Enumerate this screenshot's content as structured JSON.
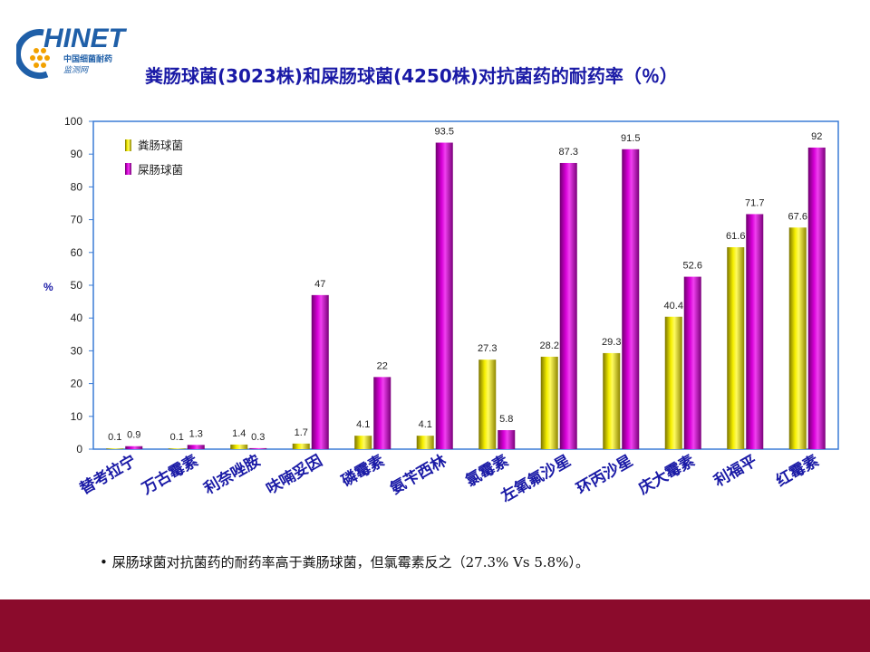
{
  "logo": {
    "word": "HINET",
    "line1": "中国细菌耐药",
    "line2": "监测网"
  },
  "slide_title": "粪肠球菌(3023株)和屎肠球菌(4250株)对抗菌药的耐药率（％）",
  "note": {
    "bullet": "•",
    "text": "屎肠球菌对抗菌药的耐药率高于粪肠球菌，但氯霉素反之（27.3% Vs 5.8%）。"
  },
  "colors": {
    "accent_title": "#1a1aa6",
    "footer": "#8b0b2c",
    "series_fecalis": "#e8e000",
    "series_faecium": "#cc00cc"
  },
  "chart_data": {
    "type": "bar",
    "title": "",
    "ylabel": "%",
    "xlabel": "",
    "ylim": [
      0,
      100
    ],
    "yticks": [
      "0",
      "10",
      "20",
      "30",
      "40",
      "50",
      "60",
      "70",
      "80",
      "90",
      "100"
    ],
    "grid": false,
    "legend_position": "top-left",
    "categories": [
      "替考拉宁",
      "万古霉素",
      "利奈唑胺",
      "呋喃妥因",
      "磷霉素",
      "氨苄西林",
      "氯霉素",
      "左氧氟沙星",
      "环丙沙星",
      "庆大霉素",
      "利福平",
      "红霉素"
    ],
    "series": [
      {
        "name": "粪肠球菌",
        "values": [
          0.1,
          0.1,
          1.4,
          1.7,
          4.1,
          4.1,
          27.3,
          28.2,
          29.3,
          40.4,
          61.6,
          67.6
        ],
        "labels": [
          "0.1",
          "0.1",
          "1.4",
          "1.7",
          "4.1",
          "4.1",
          "27.3",
          "28.2",
          "29.3",
          "40.4",
          "61.6",
          "67.6"
        ]
      },
      {
        "name": "屎肠球菌",
        "values": [
          0.9,
          1.3,
          0.3,
          47,
          22,
          93.5,
          5.8,
          87.3,
          91.5,
          52.6,
          71.7,
          92
        ],
        "labels": [
          "0.9",
          "1.3",
          "0.3",
          "47",
          "22",
          "93.5",
          "5.8",
          "87.3",
          "91.5",
          "52.6",
          "71.7",
          "92"
        ]
      }
    ]
  }
}
